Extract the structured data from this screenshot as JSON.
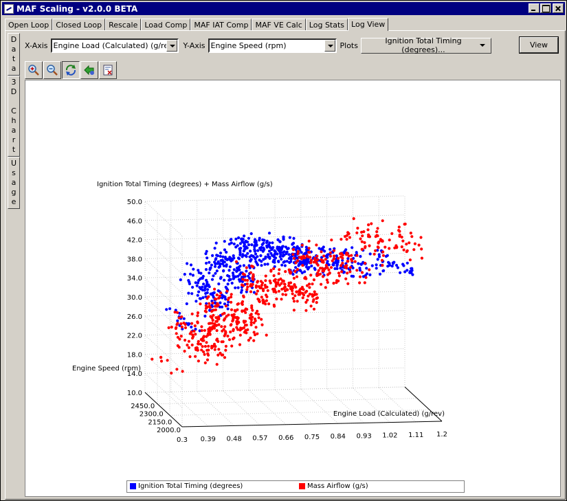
{
  "window": {
    "title": "MAF Scaling - v2.0.0 BETA"
  },
  "tabs": [
    {
      "label": "Open Loop"
    },
    {
      "label": "Closed Loop"
    },
    {
      "label": "Rescale"
    },
    {
      "label": "Load Comp"
    },
    {
      "label": "MAF IAT Comp"
    },
    {
      "label": "MAF VE Calc"
    },
    {
      "label": "Log Stats"
    },
    {
      "label": "Log View",
      "active": true
    }
  ],
  "side_tabs": [
    {
      "label": "Data"
    },
    {
      "label": "3D Chart"
    },
    {
      "label": "Usage"
    }
  ],
  "controls": {
    "x_axis_label": "X-Axis",
    "x_axis_value": "Engine Load (Calculated) (g/rev)",
    "y_axis_label": "Y-Axis",
    "y_axis_value": "Engine Speed (rpm)",
    "plots_label": "Plots",
    "plots_value": "Ignition Total Timing (degrees)...",
    "view_button": "View"
  },
  "icon_toolbar": [
    "zoom-in-icon",
    "zoom-out-icon",
    "rotate-icon",
    "pan-icon",
    "reset-icon"
  ],
  "chart_data": {
    "type": "scatter",
    "title": "",
    "zlabel": "Ignition Total Timing (degrees) + Mass Airflow (g/s)",
    "xlabel": "Engine Load (Calculated) (g/rev)",
    "ylabel": "Engine Speed (rpm)",
    "x_ticks": [
      "0.3",
      "0.39",
      "0.48",
      "0.57",
      "0.66",
      "0.75",
      "0.84",
      "0.93",
      "1.02",
      "1.11",
      "1.2"
    ],
    "y_ticks": [
      "2000.0",
      "2150.0",
      "2300.0",
      "2450.0"
    ],
    "z_ticks": [
      "10.0",
      "14.0",
      "18.0",
      "22.0",
      "26.0",
      "30.0",
      "34.0",
      "38.0",
      "42.0",
      "46.0",
      "50.0"
    ],
    "xlim": [
      0.3,
      1.2
    ],
    "zlim": [
      10.0,
      50.0
    ],
    "grid": true,
    "legend_position": "bottom",
    "series": [
      {
        "name": "Ignition Total Timing (degrees)",
        "color": "#0000ff",
        "clusters": [
          {
            "x": [
              0.33,
              0.4
            ],
            "z": [
              27,
              30
            ],
            "n": 18
          },
          {
            "x": [
              0.4,
              0.5
            ],
            "z": [
              29,
              40
            ],
            "n": 90
          },
          {
            "x": [
              0.48,
              0.58
            ],
            "z": [
              34,
              44
            ],
            "n": 130
          },
          {
            "x": [
              0.56,
              0.78
            ],
            "z": [
              40,
              45
            ],
            "n": 200
          },
          {
            "x": [
              0.7,
              0.92
            ],
            "z": [
              38.5,
              42
            ],
            "n": 130
          },
          {
            "x": [
              0.9,
              1.14
            ],
            "z": [
              38.5,
              41
            ],
            "n": 80
          }
        ]
      },
      {
        "name": "Mass Airflow (g/s)",
        "color": "#ff0000",
        "clusters": [
          {
            "x": [
              0.3,
              0.36
            ],
            "z": [
              17,
              20
            ],
            "n": 8
          },
          {
            "x": [
              0.36,
              0.5
            ],
            "z": [
              19,
              30
            ],
            "n": 110
          },
          {
            "x": [
              0.46,
              0.62
            ],
            "z": [
              23,
              35
            ],
            "n": 160
          },
          {
            "x": [
              0.6,
              0.8
            ],
            "z": [
              30,
              40
            ],
            "n": 170
          },
          {
            "x": [
              0.78,
              0.98
            ],
            "z": [
              36,
              43
            ],
            "n": 120
          },
          {
            "x": [
              0.96,
              1.18
            ],
            "z": [
              40,
              48
            ],
            "n": 80
          }
        ]
      }
    ]
  },
  "colors": {
    "title_bar": "#000080",
    "series_blue": "#0000ff",
    "series_red": "#ff0000"
  }
}
